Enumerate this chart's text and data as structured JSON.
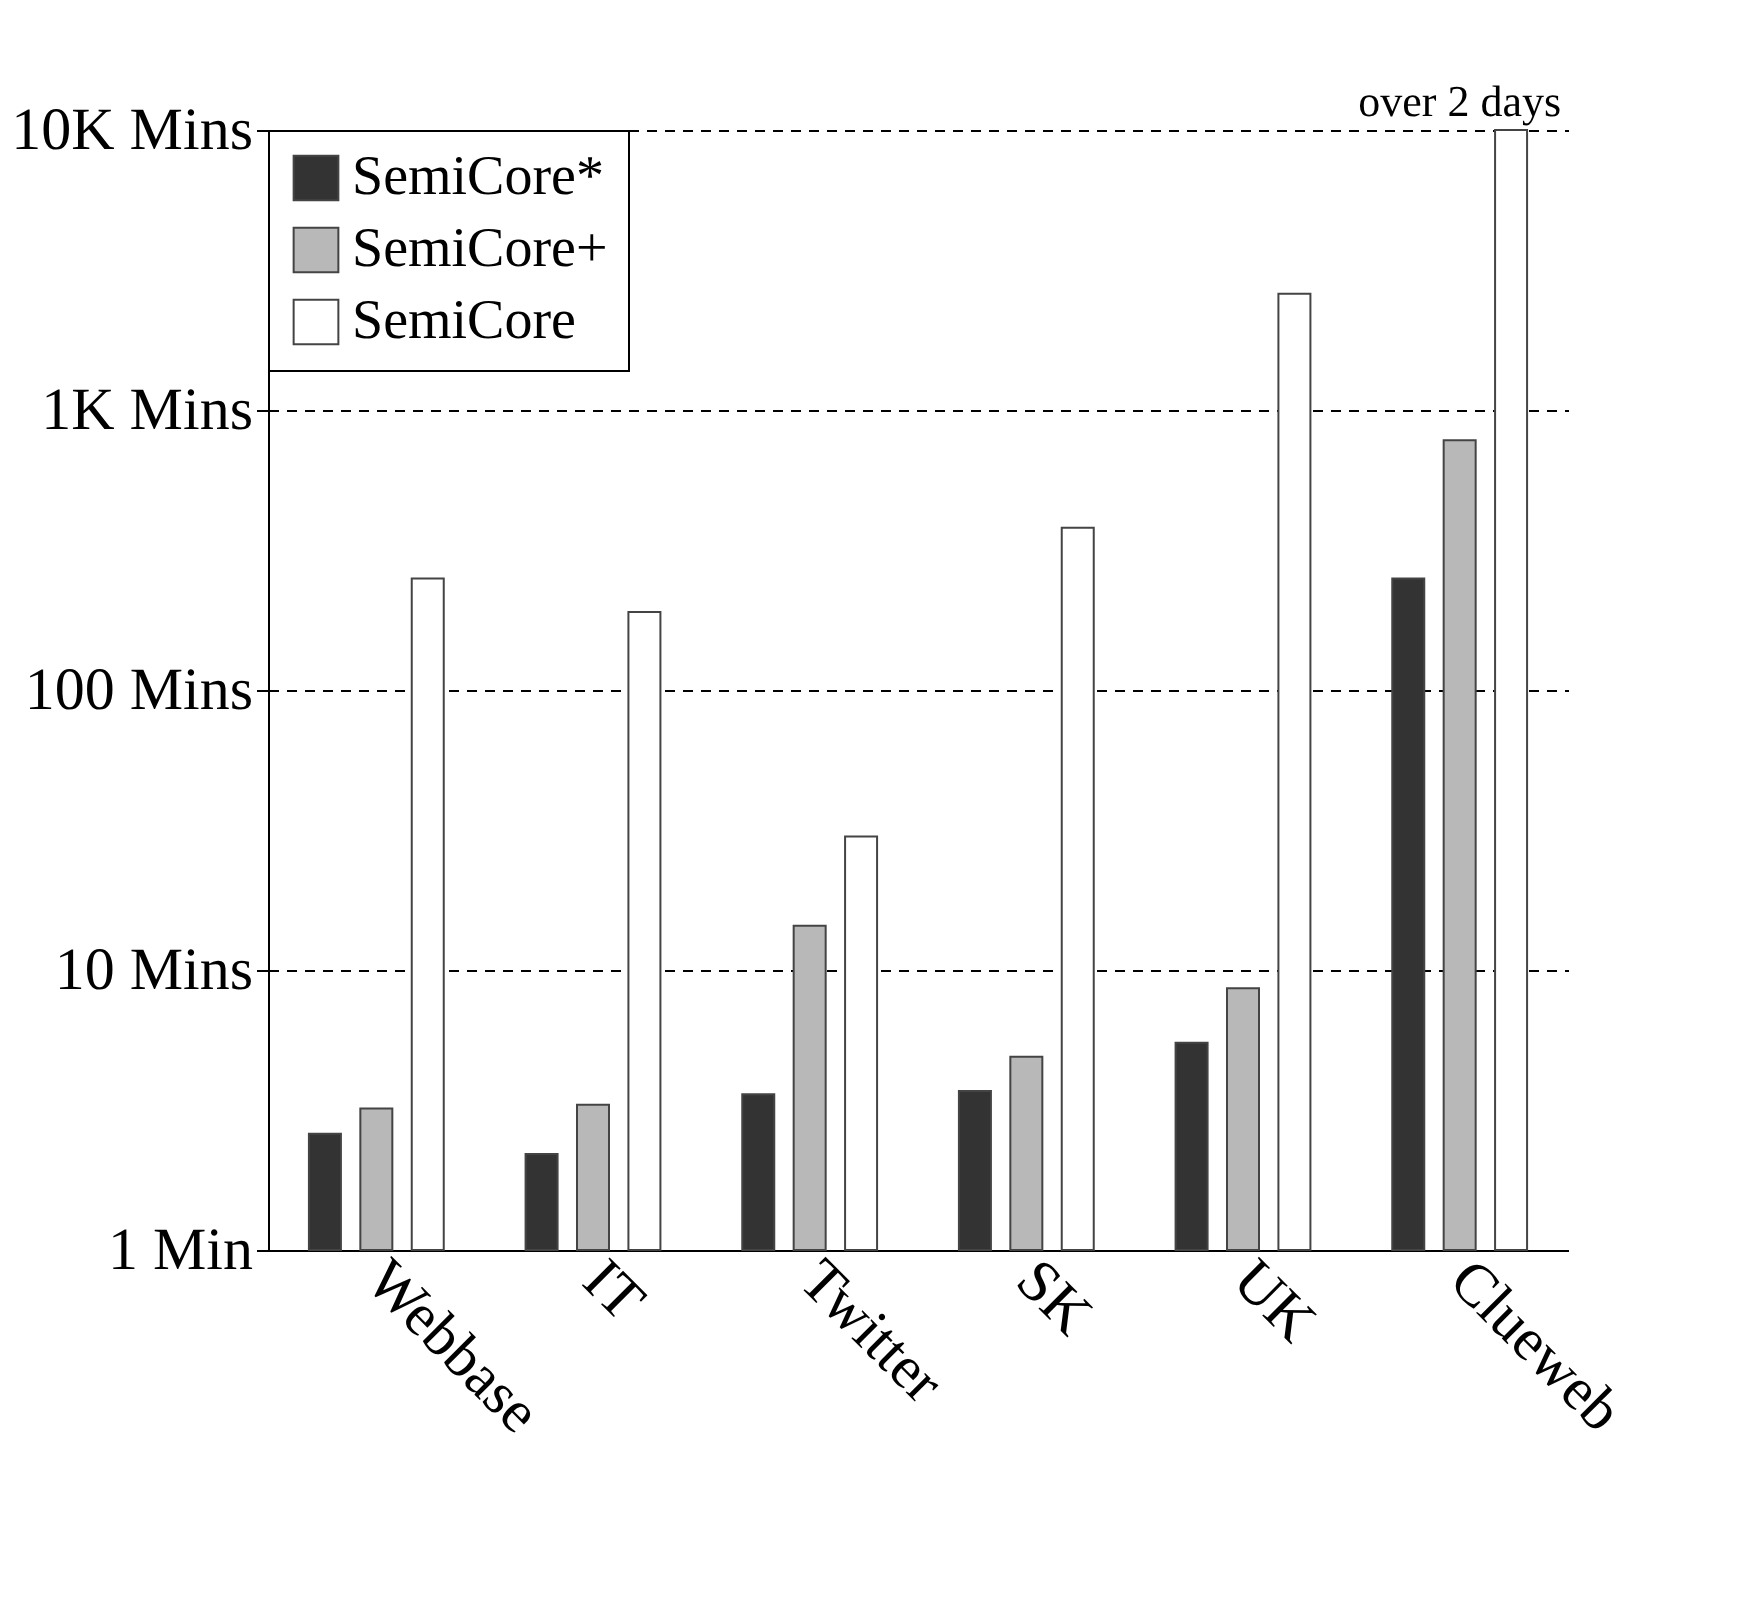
{
  "chart_data": {
    "type": "bar",
    "categories": [
      "Webbase",
      "IT",
      "Twitter",
      "SK",
      "UK",
      "Clueweb"
    ],
    "series": [
      {
        "name": "SemiCore*",
        "color": "#333333",
        "values": [
          2.6,
          2.2,
          3.6,
          3.7,
          5.5,
          250
        ]
      },
      {
        "name": "SemiCore+",
        "color": "#b8b8b8",
        "values": [
          3.2,
          3.3,
          14.4,
          4.9,
          8.6,
          780
        ]
      },
      {
        "name": "SemiCore",
        "color": "#ffffff",
        "values": [
          250,
          190,
          30,
          380,
          2600,
          10000
        ]
      }
    ],
    "log": true,
    "ylim": [
      1,
      10000
    ],
    "yticks": [
      {
        "value": 1,
        "label": "1 Min"
      },
      {
        "value": 10,
        "label": "10 Mins"
      },
      {
        "value": 100,
        "label": "100 Mins"
      },
      {
        "value": 1000,
        "label": "1K Mins"
      },
      {
        "value": 10000,
        "label": "10K Mins"
      }
    ],
    "grid": "y",
    "legend": "top left",
    "annotations": [
      {
        "text": "over 2 days",
        "x": "Clueweb",
        "y": 10000
      }
    ]
  }
}
